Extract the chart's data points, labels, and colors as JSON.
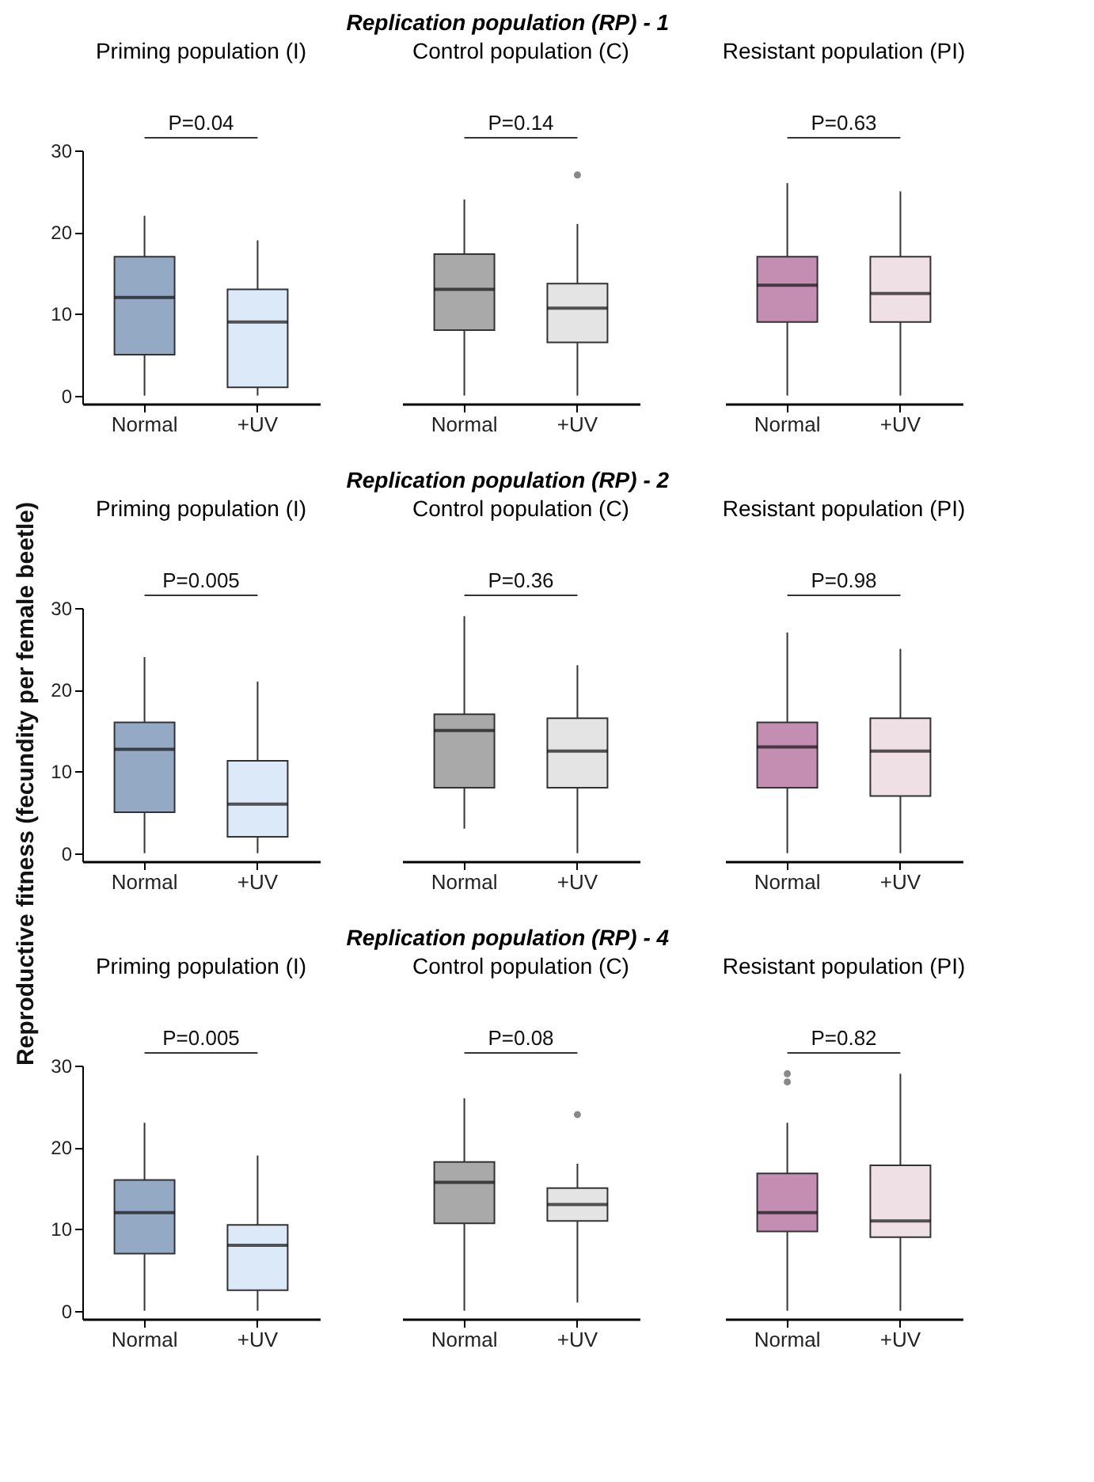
{
  "chart_data": [
    {
      "type": "box",
      "title": "Priming population (I)",
      "categories": [
        "Normal",
        "+UV"
      ],
      "colors": [
        "#94a9c3",
        "#dce9f8"
      ],
      "ylim": [
        -1,
        30
      ],
      "yticks": [
        0,
        10,
        20,
        30
      ],
      "annotations": [
        "P=0.04"
      ],
      "boxes": [
        {
          "low": 0,
          "q1": 5,
          "median": 12,
          "q3": 17,
          "high": 22
        },
        {
          "low": 0,
          "q1": 1,
          "median": 9,
          "q3": 13,
          "high": 19
        }
      ]
    },
    {
      "type": "box",
      "subtitle": "Replication population (RP) - 1",
      "title": "Control population (C)",
      "categories": [
        "Normal",
        "+UV"
      ],
      "colors": [
        "#a9a9a9",
        "#e4e4e4"
      ],
      "ylim": [
        -1,
        30
      ],
      "tick_labels": "x",
      "annotations": [
        "P=0.14"
      ],
      "boxes": [
        {
          "low": 0,
          "q1": 8,
          "median": 13,
          "q3": 17.3,
          "high": 24
        },
        {
          "low": 0,
          "q1": 6.5,
          "median": 10.7,
          "q3": 13.7,
          "high": 21,
          "outliers": [
            27
          ]
        }
      ]
    },
    {
      "type": "box",
      "title": "Resistant population (PI)",
      "categories": [
        "Normal",
        "+UV"
      ],
      "colors": [
        "#c48db2",
        "#efe0e5"
      ],
      "ylim": [
        -1,
        30
      ],
      "tick_labels": "x",
      "annotations": [
        "P=0.63"
      ],
      "boxes": [
        {
          "low": 0,
          "q1": 9,
          "median": 13.5,
          "q3": 17,
          "high": 26
        },
        {
          "low": 0,
          "q1": 9,
          "median": 12.5,
          "q3": 17,
          "high": 25
        }
      ]
    },
    {
      "type": "box",
      "title": "Priming population (I)",
      "ylabel": "Reproductive fitness (fecundity per female beetle)",
      "categories": [
        "Normal",
        "+UV"
      ],
      "colors": [
        "#94a9c3",
        "#dce9f8"
      ],
      "ylim": [
        -1,
        30
      ],
      "yticks": [
        0,
        10,
        20,
        30
      ],
      "annotations": [
        "P=0.005"
      ],
      "boxes": [
        {
          "low": 0,
          "q1": 5,
          "median": 12.7,
          "q3": 16,
          "high": 24
        },
        {
          "low": 0,
          "q1": 2,
          "median": 6,
          "q3": 11.3,
          "high": 21
        }
      ]
    },
    {
      "type": "box",
      "subtitle": "Replication population (RP) - 2",
      "title": "Control population (C)",
      "categories": [
        "Normal",
        "+UV"
      ],
      "colors": [
        "#a9a9a9",
        "#e4e4e4"
      ],
      "ylim": [
        -1,
        30
      ],
      "tick_labels": "x",
      "annotations": [
        "P=0.36"
      ],
      "boxes": [
        {
          "low": 3,
          "q1": 8,
          "median": 15,
          "q3": 17,
          "high": 29
        },
        {
          "low": 0,
          "q1": 8,
          "median": 12.5,
          "q3": 16.5,
          "high": 23
        }
      ]
    },
    {
      "type": "box",
      "title": "Resistant population (PI)",
      "categories": [
        "Normal",
        "+UV"
      ],
      "colors": [
        "#c48db2",
        "#efe0e5"
      ],
      "ylim": [
        -1,
        30
      ],
      "tick_labels": "x",
      "annotations": [
        "P=0.98"
      ],
      "boxes": [
        {
          "low": 0,
          "q1": 8,
          "median": 13,
          "q3": 16,
          "high": 27
        },
        {
          "low": 0,
          "q1": 7,
          "median": 12.5,
          "q3": 16.5,
          "high": 25
        }
      ]
    },
    {
      "type": "box",
      "title": "Priming population (I)",
      "categories": [
        "Normal",
        "+UV"
      ],
      "colors": [
        "#94a9c3",
        "#dce9f8"
      ],
      "ylim": [
        -1,
        30
      ],
      "yticks": [
        0,
        10,
        20,
        30
      ],
      "annotations": [
        "P=0.005"
      ],
      "boxes": [
        {
          "low": 0,
          "q1": 7,
          "median": 12,
          "q3": 16,
          "high": 23
        },
        {
          "low": 0,
          "q1": 2.5,
          "median": 8,
          "q3": 10.5,
          "high": 19
        }
      ]
    },
    {
      "type": "box",
      "subtitle": "Replication population (RP) - 4",
      "title": "Control population (C)",
      "categories": [
        "Normal",
        "+UV"
      ],
      "colors": [
        "#a9a9a9",
        "#e4e4e4"
      ],
      "ylim": [
        -1,
        30
      ],
      "tick_labels": "x",
      "annotations": [
        "P=0.08"
      ],
      "boxes": [
        {
          "low": 0,
          "q1": 10.7,
          "median": 15.7,
          "q3": 18.2,
          "high": 26
        },
        {
          "low": 1,
          "q1": 11,
          "median": 13,
          "q3": 15,
          "high": 18,
          "outliers": [
            24
          ]
        }
      ]
    },
    {
      "type": "box",
      "title": "Resistant population (PI)",
      "categories": [
        "Normal",
        "+UV"
      ],
      "colors": [
        "#c48db2",
        "#efe0e5"
      ],
      "ylim": [
        -1,
        30
      ],
      "tick_labels": "x",
      "annotations": [
        "P=0.82"
      ],
      "boxes": [
        {
          "low": 0,
          "q1": 9.7,
          "median": 12,
          "q3": 16.8,
          "high": 23,
          "outliers": [
            28,
            29
          ]
        },
        {
          "low": 0,
          "q1": 9,
          "median": 11,
          "q3": 17.8,
          "high": 29
        }
      ]
    }
  ]
}
